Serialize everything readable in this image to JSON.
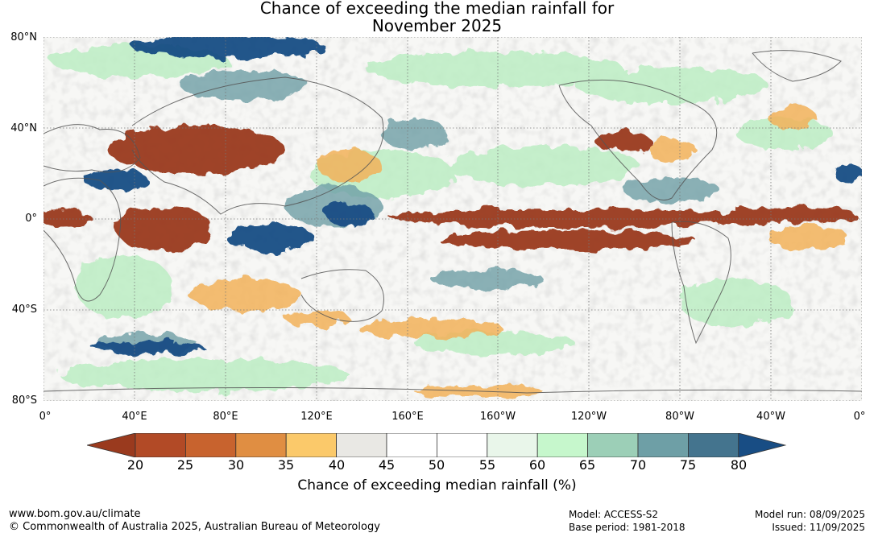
{
  "title_line1": "Chance of exceeding the median rainfall for",
  "title_line2": "November 2025",
  "lat_labels": [
    "80°N",
    "40°N",
    "0°",
    "40°S",
    "80°S"
  ],
  "lon_labels": [
    "0°",
    "40°E",
    "80°E",
    "120°E",
    "160°E",
    "160°W",
    "120°W",
    "80°W",
    "40°W",
    "0°"
  ],
  "colorbar": {
    "ticks": [
      "20",
      "25",
      "30",
      "35",
      "40",
      "45",
      "50",
      "55",
      "60",
      "65",
      "70",
      "75",
      "80"
    ],
    "colors": [
      "#9a3a1e",
      "#b24a26",
      "#c8632e",
      "#e08e42",
      "#fbc96a",
      "#e9e8e4",
      "#ffffff",
      "#ffffff",
      "#e9f6ea",
      "#c6f7cc",
      "#9ccfb7",
      "#6e9fa6",
      "#44748e",
      "#184d84"
    ],
    "label": "Chance of exceeding median rainfall (%)"
  },
  "footer": {
    "website": "www.bom.gov.au/climate",
    "copyright": "© Commonwealth of Australia 2025, Australian Bureau of Meteorology",
    "model": "Model: ACCESS-S2",
    "base_period": "Base period: 1981-2018",
    "model_run": "Model run: 08/09/2025",
    "issued": "Issued: 11/09/2025"
  }
}
